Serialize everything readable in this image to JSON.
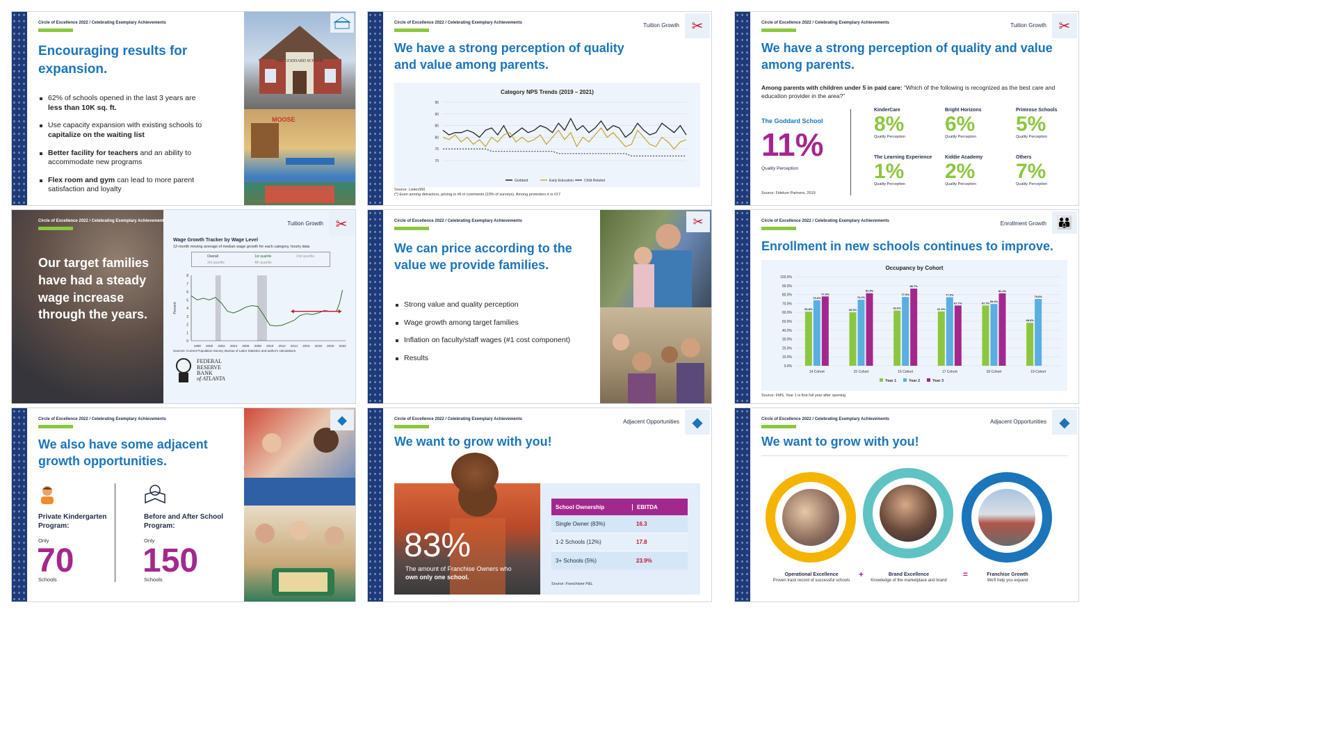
{
  "header": "Circle of Excellence 2022 / Celebrating Exemplary Achievements",
  "s1": {
    "title": "Encouraging results for expansion.",
    "bullets": [
      {
        "a": "62% of schools opened in the last 3 years are ",
        "b": "less than 10K sq. ft."
      },
      {
        "a": "Use capacity expansion with existing schools to ",
        "b": "capitalize on the waiting list"
      },
      {
        "b": "Better facility for teachers",
        "a": " and an ability to accommodate new programs"
      },
      {
        "b": "Flex room and gym",
        "a": " can lead to more parent satisfaction and loyalty"
      }
    ],
    "building_sign": "THE GODDARD SCHOOL",
    "room_sign": "MOOSE"
  },
  "s2": {
    "section": "Tuition Growth",
    "title": "We have a strong perception of quality and value among parents.",
    "source": "Source: Listen360",
    "footnote": "(*) Even among detractors, pricing is #6 in comments (23% of surveys). Among promoters it is #17"
  },
  "chart_nps": {
    "type": "line",
    "title": "Category NPS Trends (2019 – 2021)",
    "ylim": [
      70,
      95
    ],
    "yticks": [
      "95",
      "90",
      "85",
      "80",
      "75",
      "70"
    ],
    "series": [
      {
        "name": "Goddard",
        "color": "#222222",
        "values": [
          83,
          81,
          82,
          82,
          83,
          82,
          80,
          83,
          84,
          81,
          85,
          80,
          82,
          84,
          82,
          83,
          85,
          84,
          82,
          86,
          83,
          88,
          83,
          85,
          82,
          84,
          87,
          83,
          85,
          84,
          80,
          82,
          86,
          83,
          81,
          82,
          86,
          84,
          82,
          85,
          81
        ]
      },
      {
        "name": "Early Education",
        "color": "#c9a640",
        "values": [
          80,
          79,
          81,
          78,
          80,
          77,
          79,
          76,
          80,
          78,
          81,
          82,
          78,
          80,
          78,
          79,
          81,
          77,
          80,
          83,
          79,
          82,
          76,
          80,
          78,
          81,
          84,
          80,
          82,
          79,
          76,
          77,
          83,
          80,
          77,
          76,
          80,
          78,
          75,
          78,
          79
        ]
      },
      {
        "name": "Child Related",
        "color": "#555555",
        "dash": true,
        "values": [
          75,
          75,
          75,
          75,
          75,
          75,
          75,
          75,
          74,
          74,
          74,
          74,
          74,
          74,
          74,
          74,
          74,
          74,
          74,
          73,
          73,
          73,
          73,
          73,
          73,
          73,
          73,
          73,
          73,
          73,
          73,
          72,
          72,
          72,
          72,
          72,
          72,
          72,
          72,
          72,
          72
        ]
      }
    ]
  },
  "s3": {
    "section": "Tuition Growth",
    "title": "We have a strong perception of quality and value among parents.",
    "question_bold": "Among parents with children under 5 in paid care:",
    "question_rest": " “Which of the following is recognized as the best care and education provider in the area?”",
    "main": {
      "name": "The Goddard School",
      "value": "11%",
      "sub": "Quality Perception"
    },
    "items": [
      {
        "name": "KinderCare",
        "value": "8%",
        "sub": "Quality Perception"
      },
      {
        "name": "Bright Horizons",
        "value": "6%",
        "sub": "Quality Perception"
      },
      {
        "name": "Primrose Schools",
        "value": "5%",
        "sub": "Quality Perception"
      },
      {
        "name": "The Learning Experience",
        "value": "1%",
        "sub": "Quality Perception"
      },
      {
        "name": "Kiddie Academy",
        "value": "2%",
        "sub": "Quality Perception"
      },
      {
        "name": "Others",
        "value": "7%",
        "sub": "Quality Perception"
      }
    ],
    "source": "Source: Fidelum Partners, 2019"
  },
  "s4": {
    "section": "Tuition Growth",
    "headline": "Our target families have had a steady wage increase through the years.",
    "chart_title": "Wage Growth Tracker by Wage Level",
    "chart_subtitle": "12-month moving average of median wage growth for each category, hourly data",
    "legend": [
      "Overall",
      "1st quartile",
      "2nd quartile",
      "3rd quartile",
      "4th quartile"
    ],
    "ylabel": "Percent",
    "yticks": [
      "8",
      "7",
      "6",
      "5",
      "4",
      "3",
      "2",
      "1",
      "0"
    ],
    "xticks": [
      "1998",
      "2000",
      "2002",
      "2004",
      "2006",
      "2008",
      "2010",
      "2012",
      "2014",
      "2016",
      "2018",
      "2020",
      "2022"
    ],
    "source": "Sources: Current Population Survey, Bureau of Labor Statistics and author's calculations",
    "fed": [
      "FEDERAL",
      "RESERVE",
      "BANK",
      "of ATLANTA"
    ]
  },
  "chart_wage": {
    "type": "line",
    "xlim": [
      1997,
      2022.5
    ],
    "ylim": [
      0,
      8
    ],
    "x": [
      1997,
      1998,
      1999,
      2000,
      2001,
      2002,
      2003,
      2004,
      2005,
      2006,
      2007,
      2008,
      2009,
      2010,
      2011,
      2012,
      2013,
      2014,
      2015,
      2016,
      2017,
      2018,
      2019,
      2020,
      2021,
      2021.5,
      2022
    ],
    "series": [
      {
        "name": "Overall",
        "values": [
          5.5,
          5.0,
          5.2,
          5.0,
          5.3,
          4.6,
          3.6,
          3.4,
          3.7,
          4.1,
          4.3,
          4.2,
          3.1,
          1.9,
          1.8,
          1.9,
          2.2,
          2.5,
          3.1,
          3.3,
          3.2,
          3.4,
          3.7,
          3.6,
          3.6,
          4.6,
          6.2
        ]
      }
    ],
    "recessions": [
      [
        2001,
        2001.9
      ],
      [
        2007.9,
        2009.5
      ]
    ]
  },
  "s5": {
    "title": "We can price according to the value we provide families.",
    "bullets": [
      "Strong value and quality perception",
      "Wage growth among target families",
      "Inflation on faculty/staff wages (#1 cost component)",
      "Results"
    ]
  },
  "s6": {
    "section": "Enrollment Growth",
    "title": "Enrollment in new schools continues to improve.",
    "source": "Source: FMS. Year 1 is first full year after opening"
  },
  "chart_occ": {
    "type": "bar",
    "title": "Occupancy by Cohort",
    "ylim": [
      0,
      100
    ],
    "yticks": [
      "100.0%",
      "90.0%",
      "80.0%",
      "70.0%",
      "60.0%",
      "50.0%",
      "40.0%",
      "30.0%",
      "20.0%",
      "10.0%",
      "0.0%"
    ],
    "categories": [
      "14 Cohort",
      "15 Cohort",
      "16 Cohort",
      "17 Cohort",
      "18 Cohort",
      "19 Cohort"
    ],
    "series": [
      {
        "name": "Year 1",
        "color": "#8cc63f",
        "values": [
          60.8,
          60.0,
          62.0,
          61.0,
          67.7,
          48.3
        ],
        "labels": [
          "60.8%",
          "60.0%",
          "62.0%",
          "61.0%",
          "67.7%",
          "48.3%"
        ]
      },
      {
        "name": "Year 2",
        "color": "#5aaee0",
        "values": [
          73.6,
          74.2,
          77.3,
          77.0,
          69.4,
          75.0
        ],
        "labels": [
          "73.6%",
          "74.2%",
          "77.3%",
          "77.0%",
          "69.4%",
          "75.0%"
        ]
      },
      {
        "name": "Year 3",
        "color": "#a3288e",
        "values": [
          77.9,
          81.5,
          86.7,
          67.7,
          81.4,
          null
        ],
        "labels": [
          "77.9%",
          "81.5%",
          "86.7%",
          "67.7%",
          "81.4%",
          ""
        ]
      }
    ]
  },
  "s7": {
    "title": "We also have some adjacent growth opportunities.",
    "left": {
      "name": "Private Kindergarten Program:",
      "pre": "Only",
      "value": "70",
      "post": "Schools"
    },
    "right": {
      "name": "Before and After School Program:",
      "pre": "Only",
      "value": "150",
      "post": "Schools"
    }
  },
  "s8": {
    "section": "Adjacent Opportunities",
    "title": "We want to grow with you!",
    "pct": "83%",
    "caption_a": "The amount of Franchise Owners who ",
    "caption_b": "own only one school.",
    "table": {
      "headers": [
        "School Ownership",
        "EBITDA"
      ],
      "rows": [
        [
          "Single Owner (83%)",
          "16.3"
        ],
        [
          "1-2 Schools (12%)",
          "17.8"
        ],
        [
          "3+ Schools (5%)",
          "23.9%"
        ]
      ]
    },
    "source": "Source: Franchisee P&L"
  },
  "s9": {
    "section": "Adjacent Opportunities",
    "title": "We want to grow with you!",
    "items": [
      {
        "name": "Operational Excellence",
        "desc": "Proven track record of successful schools"
      },
      {
        "name": "Brand Excellence",
        "desc": "Knowledge of the marketplace and brand"
      },
      {
        "name": "Franchise Growth",
        "desc": "We'll help you expand"
      }
    ],
    "plus": "+",
    "equals": "="
  },
  "colors": {
    "blue": "#1b75bb",
    "green": "#8cc63f",
    "magenta": "#a3288e",
    "navy": "#1d3a7a",
    "red": "#c8102e"
  }
}
